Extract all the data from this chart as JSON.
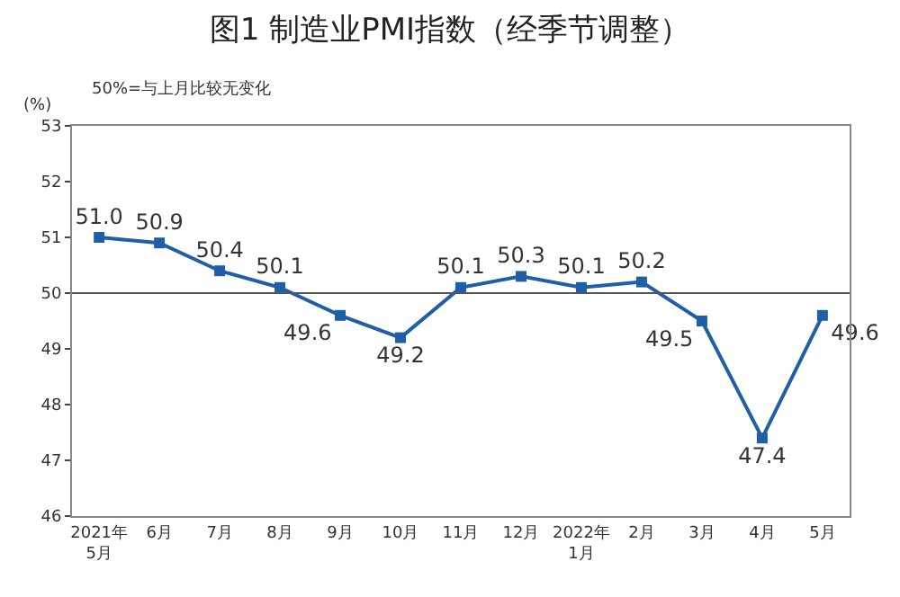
{
  "chart_data": {
    "type": "line",
    "title": "图1 制造业PMI指数（经季节调整）",
    "ylabel": "(%)",
    "annotations": [
      "50%=与上月比较无变化"
    ],
    "categories": [
      "2021年\n5月",
      "6月",
      "7月",
      "8月",
      "9月",
      "10月",
      "11月",
      "12月",
      "2022年\n1月",
      "2月",
      "3月",
      "4月",
      "5月"
    ],
    "series": [
      {
        "color": "#1f5fa8",
        "values": [
          51.0,
          50.9,
          50.4,
          50.1,
          49.6,
          49.2,
          50.1,
          50.3,
          50.1,
          50.2,
          49.5,
          47.4,
          49.6
        ]
      }
    ],
    "ylim": [
      46,
      53
    ],
    "yticks": [
      46,
      47,
      48,
      49,
      50,
      51,
      52,
      53
    ],
    "ref_lines": [
      {
        "axis": "y",
        "value": 50,
        "color": "#555555"
      }
    ],
    "value_labels": [
      "51.0",
      "50.9",
      "50.4",
      "50.1",
      "49.6",
      "49.2",
      "50.1",
      "50.3",
      "50.1",
      "50.2",
      "49.5",
      "47.4",
      "49.6"
    ],
    "marker": "square",
    "legend": false
  }
}
